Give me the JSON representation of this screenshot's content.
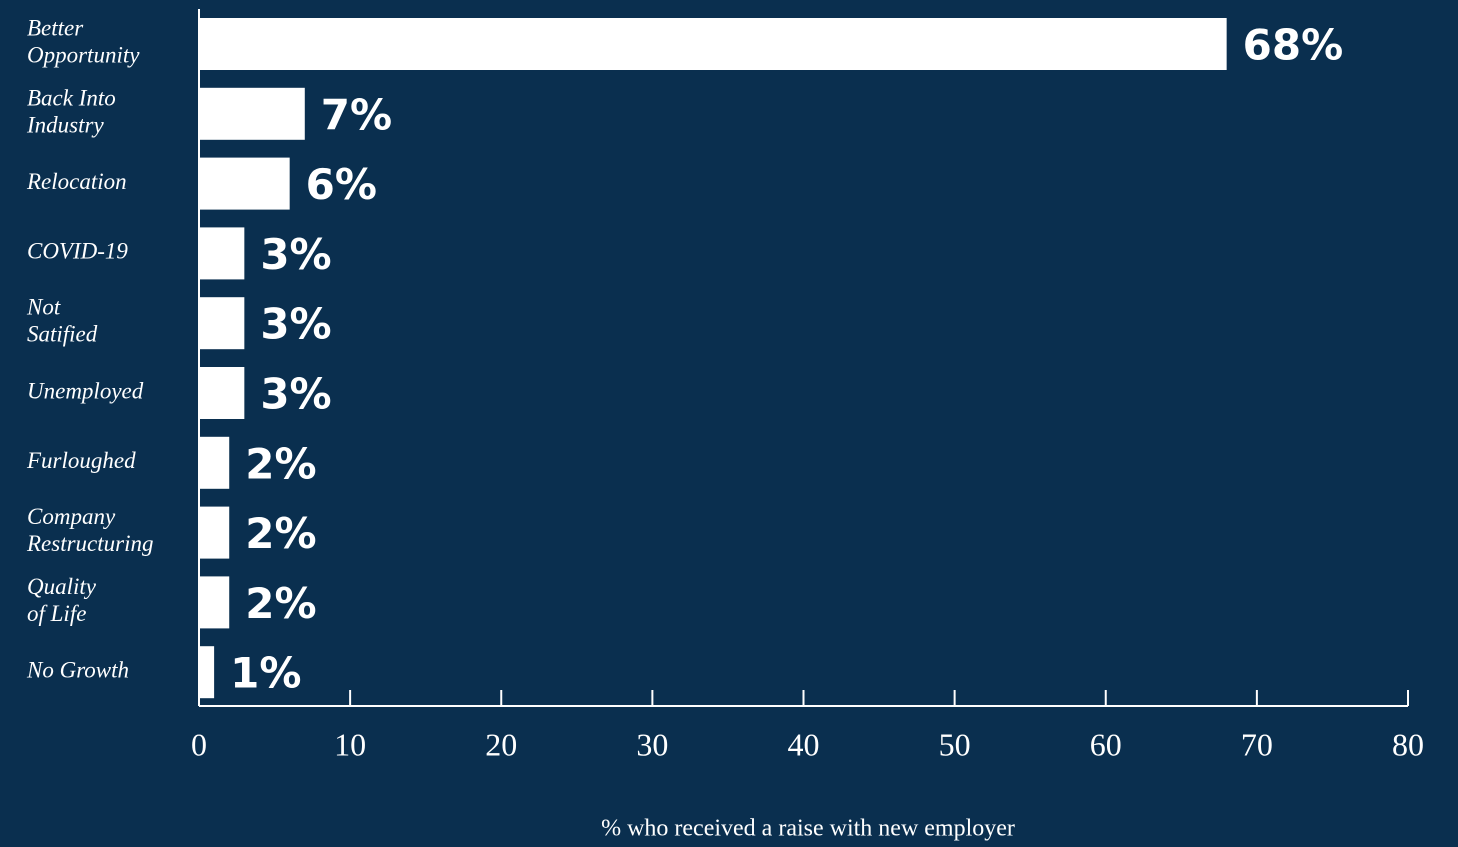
{
  "chart_data": {
    "type": "bar",
    "orientation": "horizontal",
    "x_label": "% who received a raise with new employer",
    "categories": [
      "Better\nOpportunity",
      "Back Into\nIndustry",
      "Relocation",
      "COVID-19",
      "Not\nSatified",
      "Unemployed",
      "Furloughed",
      "Company\nRestructuring",
      "Quality\nof Life",
      "No Growth"
    ],
    "values": [
      68,
      7,
      6,
      3,
      3,
      3,
      2,
      2,
      2,
      1
    ],
    "value_labels": [
      "68%",
      "7%",
      "6%",
      "3%",
      "3%",
      "3%",
      "2%",
      "2%",
      "2%",
      "1%"
    ],
    "color": "#ffffff",
    "xlim": [
      0,
      80
    ],
    "xticks": [
      0,
      10,
      20,
      30,
      40,
      50,
      60,
      70,
      80
    ],
    "grid": false
  }
}
